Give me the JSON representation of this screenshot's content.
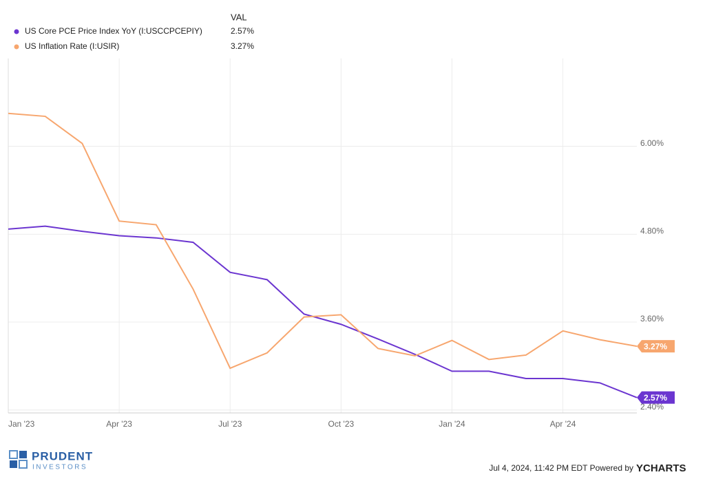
{
  "chart_data": {
    "type": "line",
    "legend_header": "VAL",
    "x": [
      "2022-12",
      "2023-01",
      "2023-02",
      "2023-03",
      "2023-04",
      "2023-05",
      "2023-06",
      "2023-07",
      "2023-08",
      "2023-09",
      "2023-10",
      "2023-11",
      "2023-12",
      "2024-01",
      "2024-02",
      "2024-03",
      "2024-04",
      "2024-05"
    ],
    "xlim": [
      "2022-12",
      "2024-05"
    ],
    "xticks": [
      {
        "value": "2023-01",
        "label": "Jan '23"
      },
      {
        "value": "2023-04",
        "label": "Apr '23"
      },
      {
        "value": "2023-07",
        "label": "Jul '23"
      },
      {
        "value": "2023-10",
        "label": "Oct '23"
      },
      {
        "value": "2024-01",
        "label": "Jan '24"
      },
      {
        "value": "2024-04",
        "label": "Apr '24"
      }
    ],
    "ylim": [
      2.36,
      7.2
    ],
    "yticks": [
      {
        "value": 2.4,
        "label": "2.40%"
      },
      {
        "value": 3.6,
        "label": "3.60%"
      },
      {
        "value": 4.8,
        "label": "4.80%"
      },
      {
        "value": 6.0,
        "label": "6.00%"
      }
    ],
    "grid": true,
    "series": [
      {
        "name": "US Core PCE Price Index YoY (I:USCCPCEPIY)",
        "color": "#6b35d0",
        "current_label": "2.57%",
        "values": [
          4.87,
          4.91,
          4.84,
          4.78,
          4.75,
          4.69,
          4.28,
          4.18,
          3.71,
          3.57,
          3.37,
          3.16,
          2.93,
          2.93,
          2.83,
          2.83,
          2.77,
          2.57
        ]
      },
      {
        "name": "US Inflation Rate (I:USIR)",
        "color": "#f7a66e",
        "current_label": "3.27%",
        "values": [
          6.45,
          6.41,
          6.04,
          4.98,
          4.93,
          4.05,
          2.97,
          3.18,
          3.67,
          3.7,
          3.24,
          3.14,
          3.35,
          3.09,
          3.15,
          3.48,
          3.36,
          3.27
        ]
      }
    ]
  },
  "footer": {
    "logo_top": "PRUDENT",
    "logo_bottom": "INVESTORS",
    "timestamp": "Jul 4, 2024, 11:42 PM EDT Powered by",
    "brand": "YCHARTS"
  }
}
